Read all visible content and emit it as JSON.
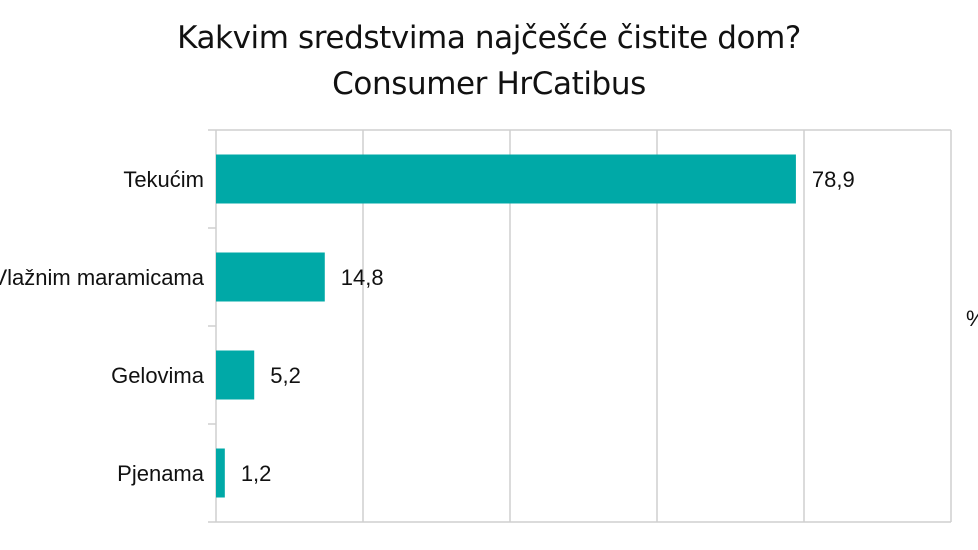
{
  "chart_data": {
    "type": "bar",
    "orientation": "horizontal",
    "title": "Kakvim sredstvima najčešće čistite dom?",
    "subtitle": "Consumer HrCatibus",
    "categories": [
      "Tekućim",
      "Vlažnim maramicama",
      "Gelovima",
      "Pjenama"
    ],
    "values": [
      78.9,
      14.8,
      5.2,
      1.2
    ],
    "value_labels": [
      "78,9",
      "14,8",
      "5,2",
      "1,2"
    ],
    "unit_label": "%",
    "xlim": [
      0,
      100
    ],
    "grid": "vertical",
    "legend": "none",
    "bar_color": "#00A9A7",
    "grid_color": "#cfcfcf"
  }
}
